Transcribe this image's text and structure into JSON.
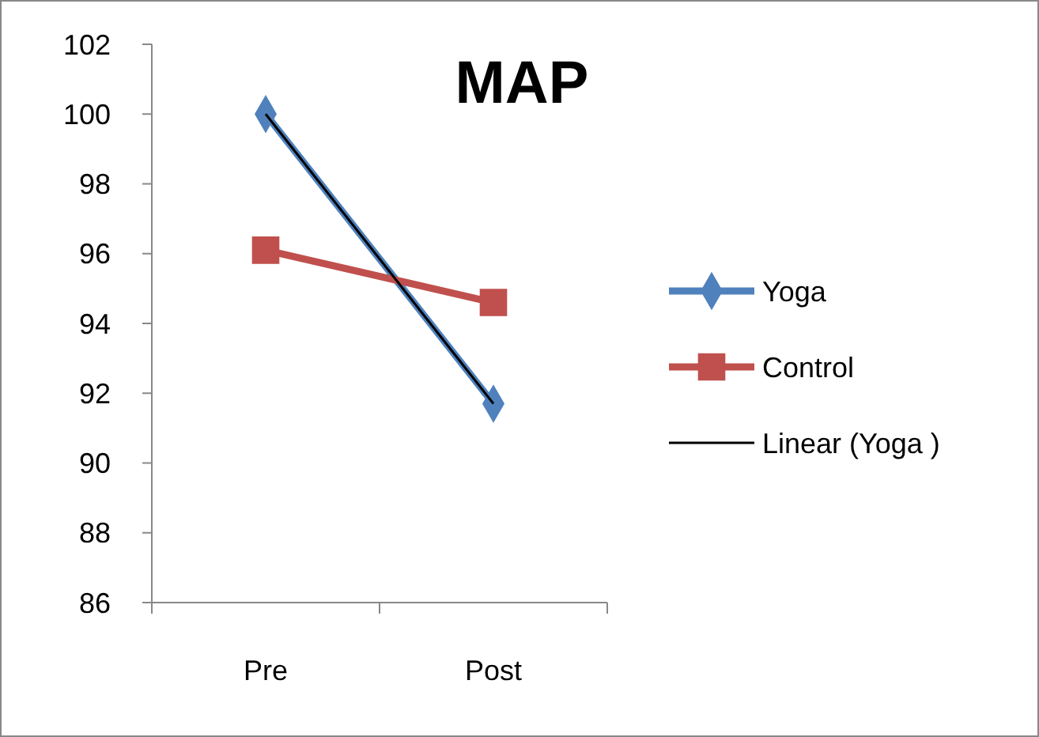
{
  "chart_data": {
    "type": "line",
    "title": "MAP",
    "categories": [
      "Pre",
      "Post"
    ],
    "series": [
      {
        "name": "Yoga",
        "color": "#4f81bd",
        "values": [
          100.0,
          91.7
        ],
        "marker": "diamond"
      },
      {
        "name": "Control",
        "color": "#c0504d",
        "values": [
          96.1,
          94.6
        ],
        "marker": "square"
      },
      {
        "name": "Linear (Yoga )",
        "color": "#000000",
        "values": [
          100.0,
          91.7
        ],
        "marker": "none"
      }
    ],
    "ylim": [
      86,
      102
    ],
    "yticks": [
      86,
      88,
      90,
      92,
      94,
      96,
      98,
      100,
      102
    ],
    "grid": false,
    "legend": "right"
  }
}
